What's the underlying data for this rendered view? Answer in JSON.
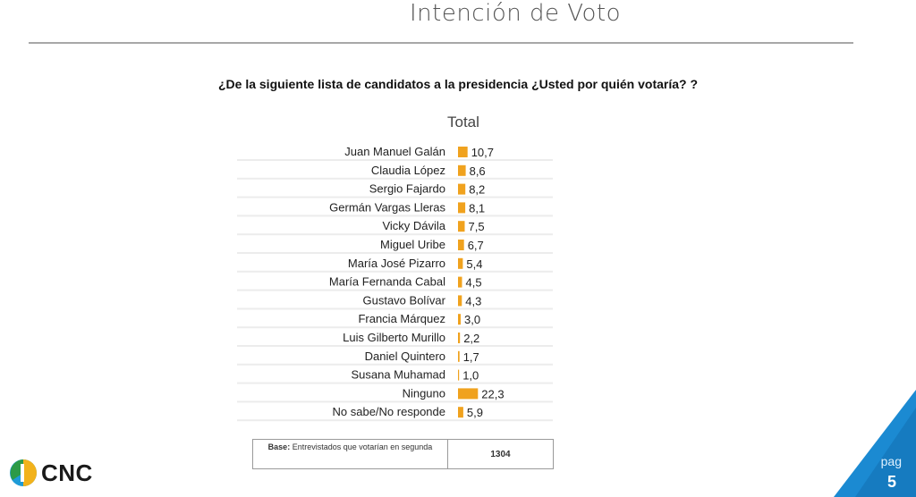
{
  "header": {
    "title": "Intención de Voto",
    "question": "¿De la siguiente lista de candidatos a la presidencia ¿Usted por quién votaría? ?"
  },
  "chart_data": {
    "type": "bar",
    "orientation": "horizontal",
    "subtitle": "Total",
    "categories": [
      "Juan Manuel Galán",
      "Claudia López",
      "Sergio Fajardo",
      "Germán Vargas Lleras",
      "Vicky Dávila",
      "Miguel Uribe",
      "María José Pizarro",
      "María Fernanda Cabal",
      "Gustavo Bolívar",
      "Francia Márquez",
      "Luis Gilberto Murillo",
      "Daniel Quintero",
      "Susana Muhamad",
      "Ninguno",
      "No sabe/No responde"
    ],
    "values": [
      10.7,
      8.6,
      8.2,
      8.1,
      7.5,
      6.7,
      5.4,
      4.5,
      4.3,
      3.0,
      2.2,
      1.7,
      1.0,
      22.3,
      5.9
    ],
    "value_labels": [
      "10,7",
      "8,6",
      "8,2",
      "8,1",
      "7,5",
      "6,7",
      "5,4",
      "4,5",
      "4,3",
      "3,0",
      "2,2",
      "1,7",
      "1,0",
      "22,3",
      "5,9"
    ],
    "bar_color": "#f0a21e",
    "track_color": "#ececec"
  },
  "base": {
    "label": "Base:",
    "text": "Entrevistados que votarían en segunda",
    "value": "1304"
  },
  "logo": {
    "text": "CNC"
  },
  "page": {
    "label": "pag",
    "number": "5",
    "accent": "#1b8ad2"
  }
}
